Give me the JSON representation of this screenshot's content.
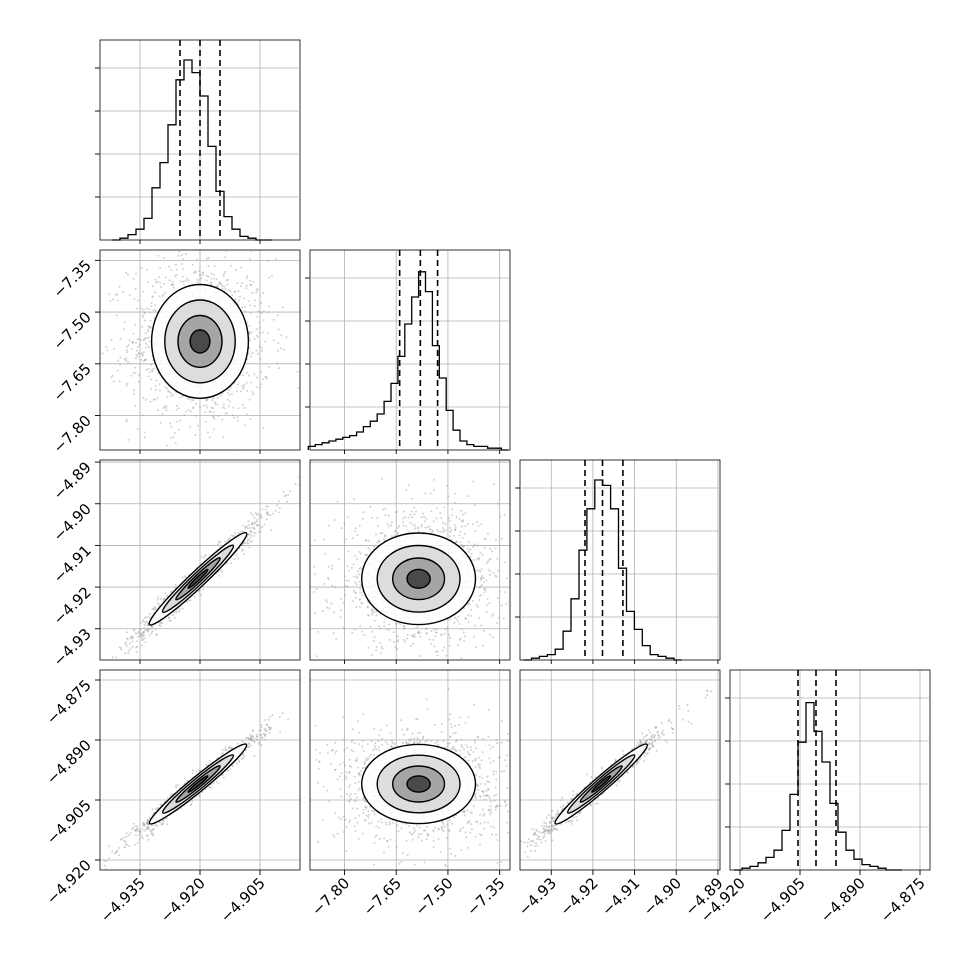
{
  "chart_data": {
    "type": "corner",
    "title": "",
    "grid": true,
    "colors": {
      "ink": "#000000",
      "grid": "#b0b0b0",
      "sample": "#9a9a9a",
      "fill": "#555555"
    },
    "parameters": [
      {
        "index": 0,
        "range": [
          -4.945,
          -4.895
        ],
        "ticks": [
          -4.935,
          -4.92,
          -4.905
        ],
        "tick_labels": [
          "−4.935",
          "−4.920",
          "−4.905"
        ]
      },
      {
        "index": 1,
        "range": [
          -7.9,
          -7.32
        ],
        "ticks": [
          -7.8,
          -7.65,
          -7.5,
          -7.35
        ],
        "tick_labels": [
          "−7.80",
          "−7.65",
          "−7.50",
          "−7.35"
        ]
      },
      {
        "index": 2,
        "range": [
          -4.9375,
          -4.8895
        ],
        "ticks": [
          -4.93,
          -4.92,
          -4.91,
          -4.9,
          -4.89
        ],
        "tick_labels": [
          "−4.93",
          "−4.92",
          "−4.91",
          "−4.90",
          "−4.89"
        ]
      },
      {
        "index": 3,
        "range": [
          -4.9225,
          -4.8725
        ],
        "ticks": [
          -4.92,
          -4.905,
          -4.89,
          -4.875
        ],
        "tick_labels": [
          "−4.920",
          "−4.905",
          "−4.890",
          "−4.875"
        ]
      }
    ],
    "marginals": [
      {
        "param": 0,
        "quantiles": [
          -4.925,
          -4.92,
          -4.915
        ],
        "bins": [
          -4.941,
          -4.939,
          -4.937,
          -4.935,
          -4.933,
          -4.931,
          -4.929,
          -4.927,
          -4.925,
          -4.923,
          -4.921,
          -4.919,
          -4.917,
          -4.915,
          -4.913,
          -4.911,
          -4.909,
          -4.907,
          -4.905,
          -4.903
        ],
        "heights": [
          0.0,
          0.01,
          0.03,
          0.06,
          0.12,
          0.29,
          0.43,
          0.64,
          0.89,
          1.0,
          0.93,
          0.8,
          0.52,
          0.27,
          0.13,
          0.06,
          0.02,
          0.01,
          0.0,
          0.0
        ]
      },
      {
        "param": 1,
        "quantiles": [
          -7.64,
          -7.58,
          -7.53
        ],
        "bins": [
          -7.895,
          -7.875,
          -7.855,
          -7.835,
          -7.815,
          -7.795,
          -7.775,
          -7.755,
          -7.735,
          -7.715,
          -7.695,
          -7.675,
          -7.655,
          -7.635,
          -7.615,
          -7.595,
          -7.575,
          -7.555,
          -7.535,
          -7.515,
          -7.495,
          -7.475,
          -7.455,
          -7.435,
          -7.415,
          -7.395,
          -7.375,
          -7.355,
          -7.335
        ],
        "heights": [
          0.02,
          0.03,
          0.04,
          0.05,
          0.06,
          0.07,
          0.08,
          0.1,
          0.13,
          0.16,
          0.2,
          0.27,
          0.37,
          0.52,
          0.7,
          0.85,
          0.99,
          0.88,
          0.58,
          0.4,
          0.22,
          0.11,
          0.05,
          0.03,
          0.02,
          0.02,
          0.01,
          0.01,
          0.0
        ]
      },
      {
        "param": 2,
        "quantiles": [
          -4.9219,
          -4.9177,
          -4.9128
        ],
        "bins": [
          -4.9357,
          -4.9338,
          -4.9319,
          -4.93,
          -4.9281,
          -4.9262,
          -4.9243,
          -4.9224,
          -4.9205,
          -4.9186,
          -4.9167,
          -4.9148,
          -4.9129,
          -4.911,
          -4.9091,
          -4.9072,
          -4.9053,
          -4.9034,
          -4.9015,
          -4.8996
        ],
        "heights": [
          0.0,
          0.01,
          0.02,
          0.03,
          0.06,
          0.16,
          0.34,
          0.61,
          0.84,
          1.0,
          0.97,
          0.84,
          0.51,
          0.27,
          0.17,
          0.08,
          0.03,
          0.02,
          0.01,
          0.0
        ]
      },
      {
        "param": 3,
        "quantiles": [
          -4.9055,
          -4.901,
          -4.896
        ],
        "bins": [
          -4.9205,
          -4.9185,
          -4.9165,
          -4.9145,
          -4.9125,
          -4.9105,
          -4.9085,
          -4.9065,
          -4.9045,
          -4.9025,
          -4.9005,
          -4.8985,
          -4.8965,
          -4.8945,
          -4.8925,
          -4.8905,
          -4.8885,
          -4.8865,
          -4.8845,
          -4.8825,
          -4.8805
        ],
        "heights": [
          0.0,
          0.01,
          0.02,
          0.04,
          0.07,
          0.11,
          0.22,
          0.42,
          0.71,
          0.93,
          0.77,
          0.6,
          0.37,
          0.21,
          0.11,
          0.06,
          0.03,
          0.02,
          0.01,
          0.0,
          0.0
        ]
      }
    ],
    "joints": [
      {
        "x": 0,
        "y": 1,
        "mean": [
          -4.92,
          -7.585
        ],
        "sd": [
          0.0055,
          0.075
        ],
        "corr": 0.0
      },
      {
        "x": 0,
        "y": 2,
        "mean": [
          -4.9205,
          -4.918
        ],
        "sd": [
          0.0055,
          0.005
        ],
        "corr": 0.98
      },
      {
        "x": 1,
        "y": 2,
        "mean": [
          -7.585,
          -4.918
        ],
        "sd": [
          0.075,
          0.005
        ],
        "corr": 0.0
      },
      {
        "x": 0,
        "y": 3,
        "mean": [
          -4.9205,
          -4.901
        ],
        "sd": [
          0.0055,
          0.0045
        ],
        "corr": 0.98
      },
      {
        "x": 1,
        "y": 3,
        "mean": [
          -7.585,
          -4.901
        ],
        "sd": [
          0.075,
          0.0045
        ],
        "corr": 0.0
      },
      {
        "x": 2,
        "y": 3,
        "mean": [
          -4.918,
          -4.901
        ],
        "sd": [
          0.005,
          0.0045
        ],
        "corr": 0.98
      }
    ]
  }
}
